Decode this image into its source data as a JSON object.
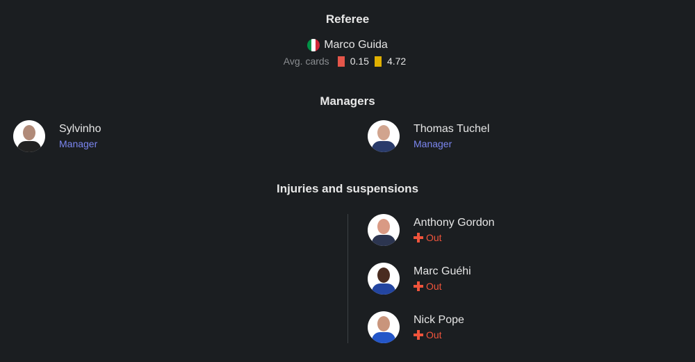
{
  "referee": {
    "heading": "Referee",
    "name": "Marco Guida",
    "flag": "italy-flag",
    "avg_label": "Avg. cards",
    "red": "0.15",
    "yellow": "4.72",
    "red_color": "#e5564a",
    "yellow_color": "#e0b000"
  },
  "managers": {
    "heading": "Managers",
    "items": [
      {
        "name": "Sylvinho",
        "role": "Manager"
      },
      {
        "name": "Thomas Tuchel",
        "role": "Manager"
      }
    ]
  },
  "injuries": {
    "heading": "Injuries and suspensions",
    "items": [
      {
        "name": "Anthony Gordon",
        "status": "Out"
      },
      {
        "name": "Marc Guéhi",
        "status": "Out"
      },
      {
        "name": "Nick Pope",
        "status": "Out"
      }
    ]
  }
}
